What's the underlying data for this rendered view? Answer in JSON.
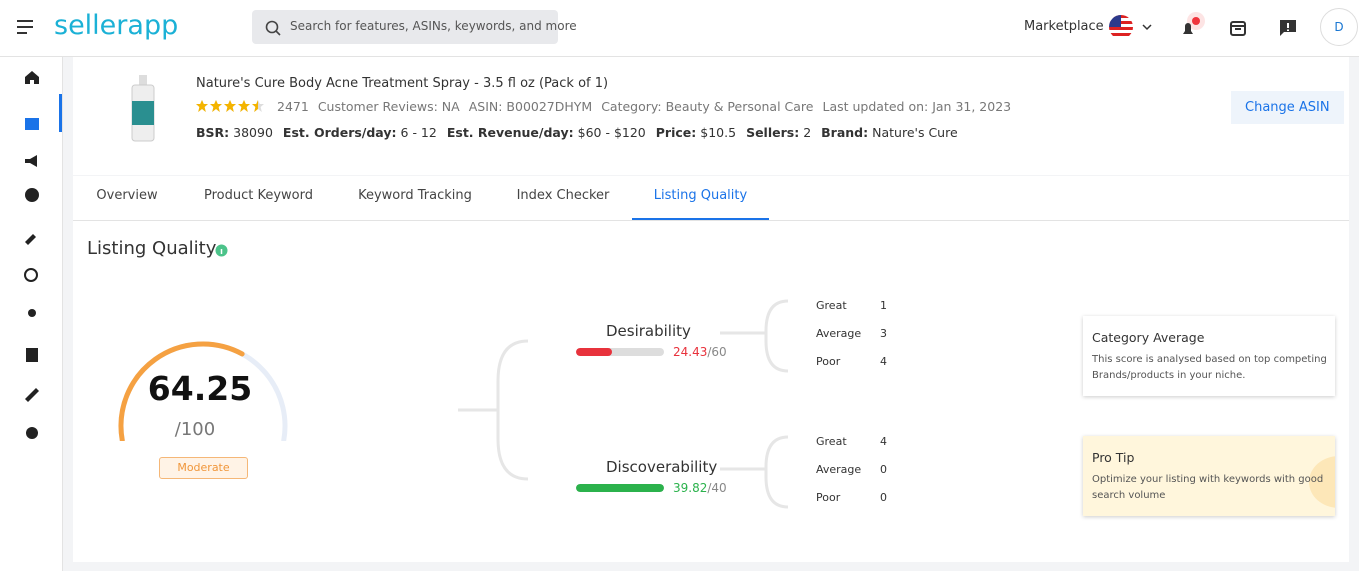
{
  "header": {
    "logo": "sellerapp",
    "search_placeholder": "Search for features, ASINs, keywords, and more",
    "marketplace": "Marketplace",
    "avatar": "D"
  },
  "product": {
    "title": "Nature's Cure Body Acne Treatment Spray - 3.5 fl oz (Pack of 1)",
    "rating": 4.5,
    "rating_count": "2471",
    "reviews": "Customer Reviews: NA",
    "asin": "ASIN: B00027DHYM",
    "category": "Category: Beauty & Personal Care",
    "updated": "Last updated on: Jan 31, 2023",
    "stats": [
      {
        "label": "BSR:",
        "value": "38090"
      },
      {
        "label": "Est. Orders/day:",
        "value": "6 - 12"
      },
      {
        "label": "Est. Revenue/day:",
        "value": "$60 - $120"
      },
      {
        "label": "Price:",
        "value": "$10.5"
      },
      {
        "label": "Sellers:",
        "value": "2"
      },
      {
        "label": "Brand:",
        "value": "Nature's Cure"
      }
    ],
    "change_button": "Change ASIN"
  },
  "tabs": {
    "items": [
      "Overview",
      "Product Keyword",
      "Keyword Tracking",
      "Index Checker",
      "Listing Quality"
    ],
    "active": 4
  },
  "listing_quality": {
    "title": "Listing Quality",
    "score": 64.25,
    "max": 100,
    "max_label": "/100",
    "grade": "Moderate",
    "sections": [
      {
        "name": "Desirability",
        "score": 24.43,
        "max": 60,
        "max_label": "/60",
        "color": "#e8323c",
        "breakdown": [
          {
            "label": "Great",
            "count": 1
          },
          {
            "label": "Average",
            "count": 3
          },
          {
            "label": "Poor",
            "count": 4
          }
        ]
      },
      {
        "name": "Discoverability",
        "score": 39.82,
        "max": 40,
        "max_label": "/40",
        "color": "#2bb24c",
        "breakdown": [
          {
            "label": "Great",
            "count": 4
          },
          {
            "label": "Average",
            "count": 0
          },
          {
            "label": "Poor",
            "count": 0
          }
        ]
      }
    ]
  },
  "cards": [
    {
      "title": "Category Average",
      "text": "This score is analysed based on top competing Brands/products in your niche."
    },
    {
      "title": "Pro Tip",
      "text": "Optimize your listing with keywords with good search volume"
    }
  ]
}
